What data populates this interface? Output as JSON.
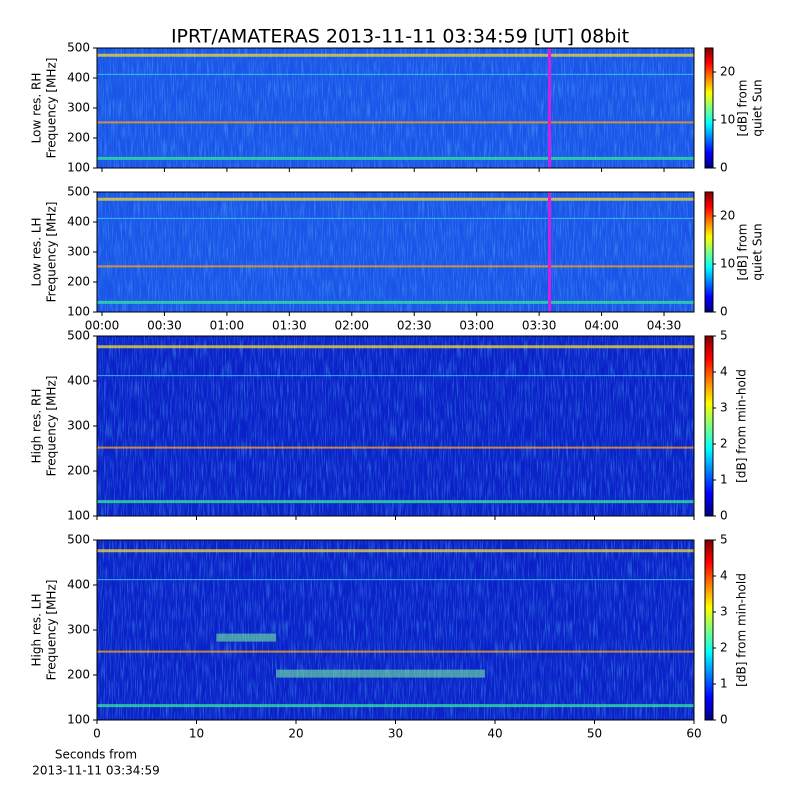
{
  "chart_data": [
    {
      "type": "spectrogram",
      "title": "IPRT/AMATERAS 2013-11-11 03:34:59 [UT]   08bit",
      "ylabel": [
        "Low res. RH",
        "Frequency [MHz]"
      ],
      "ylim": [
        100,
        500
      ],
      "yticks": [
        100,
        200,
        300,
        400,
        500
      ],
      "xlim": [
        -2.4,
        284.4
      ],
      "marker": 215,
      "marker_color": "#d020e0",
      "colorbar_label": [
        "[dB] from",
        "quiet Sun"
      ],
      "clim": [
        0,
        25
      ],
      "cticks": [
        0,
        10,
        20
      ]
    },
    {
      "type": "spectrogram",
      "ylabel": [
        "Low res. LH",
        "Frequency [MHz]"
      ],
      "ylim": [
        100,
        500
      ],
      "yticks": [
        100,
        200,
        300,
        400,
        500
      ],
      "xlim": [
        -2.4,
        284.4
      ],
      "marker": 215,
      "marker_color": "#d020e0",
      "xticks": [
        {
          "value": 0,
          "label": "00:00"
        },
        {
          "value": 30,
          "label": "00:30"
        },
        {
          "value": 60,
          "label": "01:00"
        },
        {
          "value": 90,
          "label": "01:30"
        },
        {
          "value": 120,
          "label": "02:00"
        },
        {
          "value": 150,
          "label": "02:30"
        },
        {
          "value": 180,
          "label": "03:00"
        },
        {
          "value": 210,
          "label": "03:30"
        },
        {
          "value": 240,
          "label": "04:00"
        },
        {
          "value": 270,
          "label": "04:30"
        }
      ],
      "colorbar_label": [
        "[dB] from",
        "quiet Sun"
      ],
      "clim": [
        0,
        25
      ],
      "cticks": [
        0,
        10,
        20
      ]
    },
    {
      "type": "spectrogram",
      "ylabel": [
        "High res. RH",
        "Frequency [MHz]"
      ],
      "ylim": [
        100,
        500
      ],
      "yticks": [
        100,
        200,
        300,
        400,
        500
      ],
      "xlim": [
        0,
        60
      ],
      "colorbar_label": [
        "[dB] from min-hold"
      ],
      "clim": [
        0,
        5
      ],
      "cticks": [
        0,
        1,
        2,
        3,
        4,
        5
      ]
    },
    {
      "type": "spectrogram",
      "ylabel": [
        "High res. LH",
        "Frequency [MHz]"
      ],
      "ylim": [
        100,
        500
      ],
      "yticks": [
        100,
        200,
        300,
        400,
        500
      ],
      "xlim": [
        0,
        60
      ],
      "xticks": [
        0,
        10,
        20,
        30,
        40,
        50,
        60
      ],
      "xlabel": [
        "Seconds from",
        "2013-11-11 03:34:59"
      ],
      "colorbar_label": [
        "[dB] from min-hold"
      ],
      "clim": [
        0,
        5
      ],
      "cticks": [
        0,
        1,
        2,
        3,
        4,
        5
      ]
    }
  ]
}
